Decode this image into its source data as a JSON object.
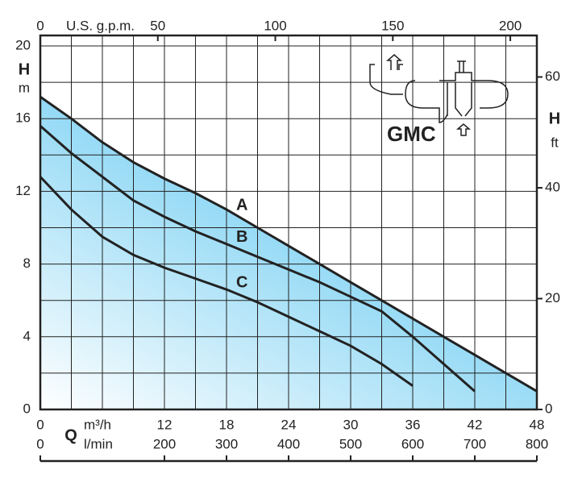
{
  "chart_data": {
    "type": "line",
    "title": "GMC",
    "x": [
      0,
      3,
      6,
      9,
      12,
      15,
      18,
      21,
      24,
      27,
      30,
      33,
      36,
      39,
      42,
      45,
      48
    ],
    "series": [
      {
        "name": "A",
        "color": "#222222",
        "values": [
          17.2,
          16.0,
          14.7,
          13.6,
          12.7,
          11.9,
          11.0,
          10.0,
          9.0,
          8.0,
          7.0,
          6.0,
          5.0,
          4.0,
          3.0,
          2.0,
          1.0
        ]
      },
      {
        "name": "B",
        "color": "#222222",
        "values": [
          15.6,
          14.1,
          12.8,
          11.5,
          10.6,
          9.8,
          9.1,
          8.4,
          7.7,
          7.0,
          6.2,
          5.4,
          4.0,
          2.5,
          1.0,
          null,
          null
        ]
      },
      {
        "name": "C",
        "color": "#222222",
        "values": [
          12.8,
          11.0,
          9.5,
          8.5,
          7.8,
          7.2,
          6.6,
          5.9,
          5.1,
          4.3,
          3.5,
          2.5,
          1.3,
          null,
          null,
          null,
          null
        ]
      }
    ],
    "fill_color": "#5cc6f0",
    "xlabel": "Q",
    "xunit": "m³/h",
    "xlim": [
      0,
      48
    ],
    "xticks": [
      0,
      12,
      18,
      24,
      30,
      36,
      42,
      48
    ],
    "x2label": "U.S. g.p.m.",
    "x2lim": [
      0,
      211.3
    ],
    "x2ticks": [
      0,
      50,
      100,
      150,
      200
    ],
    "x3unit": "l/min",
    "x3lim": [
      0,
      800
    ],
    "x3ticks": [
      0,
      200,
      300,
      400,
      500,
      600,
      700,
      800
    ],
    "ylabel": "H",
    "yunit": "m",
    "ylim": [
      0,
      20
    ],
    "yticks": [
      0,
      4,
      8,
      12,
      16,
      20
    ],
    "y2label": "H",
    "y2unit": "ft",
    "y2lim": [
      0,
      65.6
    ],
    "y2ticks": [
      0,
      20,
      40,
      60
    ],
    "grid": true
  }
}
